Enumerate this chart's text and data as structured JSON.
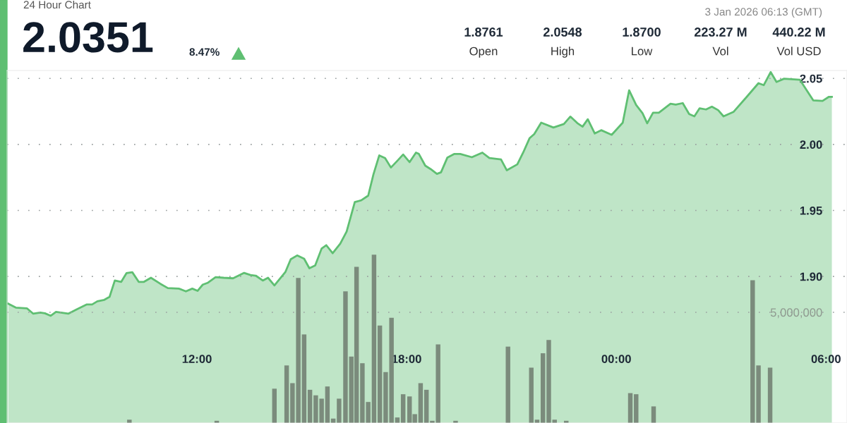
{
  "chart_data": {
    "type": "area",
    "title": "24 Hour Chart",
    "subtitle": "2.0351",
    "annotations": [
      "8.47%",
      "3 Jan 2026 06:13 (GMT)",
      "1.8761",
      "Open",
      "2.0548",
      "High",
      "1.8700",
      "Low",
      "223.27 M",
      "Vol",
      "440.22 M",
      "Vol USD"
    ],
    "series": [
      {
        "color": "#5fbf72",
        "x": [
          "2026-01-02T06:36",
          "2026-01-02T06:49",
          "2026-01-02T07:08",
          "2026-01-02T07:19",
          "2026-01-02T07:31",
          "2026-01-02T07:39",
          "2026-01-02T07:49",
          "2026-01-02T07:58",
          "2026-01-02T08:19",
          "2026-01-02T08:35",
          "2026-01-02T08:51",
          "2026-01-02T09:00",
          "2026-01-02T09:09",
          "2026-01-02T09:21",
          "2026-01-02T09:30",
          "2026-01-02T09:39",
          "2026-01-02T09:50",
          "2026-01-02T09:59",
          "2026-01-02T10:09",
          "2026-01-02T10:20",
          "2026-01-02T10:29",
          "2026-01-02T10:41",
          "2026-01-02T10:57",
          "2026-01-02T11:10",
          "2026-01-02T11:29",
          "2026-01-02T11:41",
          "2026-01-02T11:52",
          "2026-01-02T12:01",
          "2026-01-02T12:10",
          "2026-01-02T12:19",
          "2026-01-02T12:32",
          "2026-01-02T12:46",
          "2026-01-02T13:02",
          "2026-01-02T13:21",
          "2026-01-02T13:32",
          "2026-01-02T13:41",
          "2026-01-02T13:53",
          "2026-01-02T14:02",
          "2026-01-02T14:13",
          "2026-01-02T14:32",
          "2026-01-02T14:41",
          "2026-01-02T14:52",
          "2026-01-02T15:04",
          "2026-01-02T15:13",
          "2026-01-02T15:23",
          "2026-01-02T15:34",
          "2026-01-02T15:42",
          "2026-01-02T15:53",
          "2026-01-02T16:06",
          "2026-01-02T16:17",
          "2026-01-02T16:31",
          "2026-01-02T16:42",
          "2026-01-02T16:54",
          "2026-01-02T17:03",
          "2026-01-02T17:13",
          "2026-01-02T17:23",
          "2026-01-02T17:33",
          "2026-01-02T17:44",
          "2026-01-02T17:54",
          "2026-01-02T18:05",
          "2026-01-02T18:16",
          "2026-01-02T18:21",
          "2026-01-02T18:32",
          "2026-01-02T18:41",
          "2026-01-02T18:52",
          "2026-01-02T18:59",
          "2026-01-02T19:10",
          "2026-01-02T19:22",
          "2026-01-02T19:32",
          "2026-01-02T19:52",
          "2026-01-02T20:10",
          "2026-01-02T20:22",
          "2026-01-02T20:42",
          "2026-01-02T20:52",
          "2026-01-02T21:10",
          "2026-01-02T21:20",
          "2026-01-02T21:31",
          "2026-01-02T21:39",
          "2026-01-02T21:51",
          "2026-01-02T22:12",
          "2026-01-02T22:30",
          "2026-01-02T22:41",
          "2026-01-02T22:53",
          "2026-01-02T23:02",
          "2026-01-02T23:11",
          "2026-01-02T23:23",
          "2026-01-02T23:34",
          "2026-01-02T23:52",
          "2026-01-03T00:11",
          "2026-01-03T00:22",
          "2026-01-03T00:34",
          "2026-01-03T00:45",
          "2026-01-03T00:53",
          "2026-01-03T01:03",
          "2026-01-03T01:13",
          "2026-01-03T01:33",
          "2026-01-03T01:42",
          "2026-01-03T01:54",
          "2026-01-03T02:05",
          "2026-01-03T02:14",
          "2026-01-03T02:23",
          "2026-01-03T02:34",
          "2026-01-03T02:44",
          "2026-01-03T02:55",
          "2026-01-03T03:04",
          "2026-01-03T03:21",
          "2026-01-03T03:44",
          "2026-01-03T04:04",
          "2026-01-03T04:13",
          "2026-01-03T04:25",
          "2026-01-03T04:35",
          "2026-01-03T04:48",
          "2026-01-03T05:15",
          "2026-01-03T05:38",
          "2026-01-03T05:54",
          "2026-01-03T06:05",
          "2026-01-03T06:10"
        ],
        "values": [
          1.8794,
          1.8764,
          1.8759,
          1.8718,
          1.8727,
          1.8721,
          1.8702,
          1.8732,
          1.8718,
          1.8754,
          1.8788,
          1.8788,
          1.8812,
          1.8823,
          1.8846,
          1.8969,
          1.8959,
          1.9025,
          1.9032,
          1.8959,
          1.8959,
          1.899,
          1.8945,
          1.8912,
          1.8908,
          1.8887,
          1.8908,
          1.8891,
          1.8938,
          1.8953,
          1.8995,
          1.899,
          1.8986,
          1.9027,
          1.9011,
          1.9006,
          1.8969,
          1.899,
          1.8932,
          1.9035,
          1.913,
          1.9159,
          1.9134,
          1.9062,
          1.9083,
          1.9211,
          1.9237,
          1.9176,
          1.9248,
          1.934,
          1.9563,
          1.9577,
          1.9612,
          1.9773,
          1.9917,
          1.9897,
          1.9825,
          1.9876,
          1.9924,
          1.9866,
          1.9938,
          1.9928,
          1.9839,
          1.9814,
          1.9777,
          1.9789,
          1.9901,
          1.9928,
          1.9928,
          1.9903,
          1.9938,
          1.9897,
          1.9887,
          1.9804,
          1.9849,
          1.9938,
          2.0047,
          2.0078,
          2.0165,
          2.0128,
          2.0155,
          2.0211,
          2.0162,
          2.0135,
          2.0191,
          2.0083,
          2.0108,
          2.0073,
          2.0165,
          2.041,
          2.0299,
          2.0236,
          2.016,
          2.024,
          2.024,
          2.0308,
          2.0302,
          2.0313,
          2.023,
          2.0213,
          2.0274,
          2.0265,
          2.0286,
          2.0259,
          2.0213,
          2.0246,
          2.0361,
          2.0464,
          2.0449,
          2.0548,
          2.0473,
          2.0498,
          2.049,
          2.0334,
          2.033,
          2.0361,
          2.0361
        ]
      },
      {
        "type": "bar",
        "axis": "y2",
        "color": "#7b8b7c",
        "x": [
          "2026-01-02T10:04",
          "2026-01-02T12:34",
          "2026-01-02T14:13",
          "2026-01-02T14:34",
          "2026-01-02T14:44",
          "2026-01-02T14:54",
          "2026-01-02T15:04",
          "2026-01-02T15:14",
          "2026-01-02T15:24",
          "2026-01-02T15:34",
          "2026-01-02T15:44",
          "2026-01-02T15:54",
          "2026-01-02T16:04",
          "2026-01-02T16:15",
          "2026-01-02T16:25",
          "2026-01-02T16:34",
          "2026-01-02T16:44",
          "2026-01-02T16:54",
          "2026-01-02T17:04",
          "2026-01-02T17:14",
          "2026-01-02T17:24",
          "2026-01-02T17:34",
          "2026-01-02T17:44",
          "2026-01-02T17:54",
          "2026-01-02T18:05",
          "2026-01-02T18:14",
          "2026-01-02T18:24",
          "2026-01-02T18:34",
          "2026-01-02T18:44",
          "2026-01-02T18:54",
          "2026-01-02T19:24",
          "2026-01-02T20:54",
          "2026-01-02T21:34",
          "2026-01-02T21:44",
          "2026-01-02T21:54",
          "2026-01-02T22:04",
          "2026-01-02T22:14",
          "2026-01-02T22:34",
          "2026-01-03T00:24",
          "2026-01-03T00:34",
          "2026-01-03T01:04",
          "2026-01-03T03:54",
          "2026-01-03T04:04",
          "2026-01-03T04:24"
        ],
        "values": [
          150000,
          100000,
          1550000,
          2600000,
          1800000,
          6550000,
          4000000,
          1500000,
          1250000,
          1100000,
          1650000,
          200000,
          1100000,
          5950000,
          3000000,
          7050000,
          2700000,
          950000,
          7600000,
          4400000,
          2300000,
          4750000,
          250000,
          1300000,
          1200000,
          400000,
          1800000,
          1500000,
          100000,
          3550000,
          100000,
          3450000,
          2500000,
          150000,
          3150000,
          3750000,
          150000,
          100000,
          1350000,
          1300000,
          750000,
          6450000,
          2600000,
          2500000
        ]
      }
    ],
    "xlim": [
      "2026-01-02T06:34",
      "2026-01-03T06:36"
    ],
    "xticks": [
      {
        "value": "2026-01-02T12:00",
        "label": "12:00"
      },
      {
        "value": "2026-01-02T18:00",
        "label": "18:00"
      },
      {
        "value": "2026-01-03T00:00",
        "label": "00:00"
      },
      {
        "value": "2026-01-03T06:00",
        "label": "06:00"
      }
    ],
    "ylim": [
      1.789,
      2.056
    ],
    "yticks": [
      {
        "value": 1.9,
        "label": "1.90"
      },
      {
        "value": 1.95,
        "label": "1.95"
      },
      {
        "value": 2.0,
        "label": "2.00"
      },
      {
        "value": 2.05,
        "label": "2.05"
      }
    ],
    "y2lim": [
      0,
      15920000
    ],
    "y2ticks": [
      {
        "value": 5000000,
        "label": "5,000,000"
      }
    ],
    "grid": "y"
  }
}
